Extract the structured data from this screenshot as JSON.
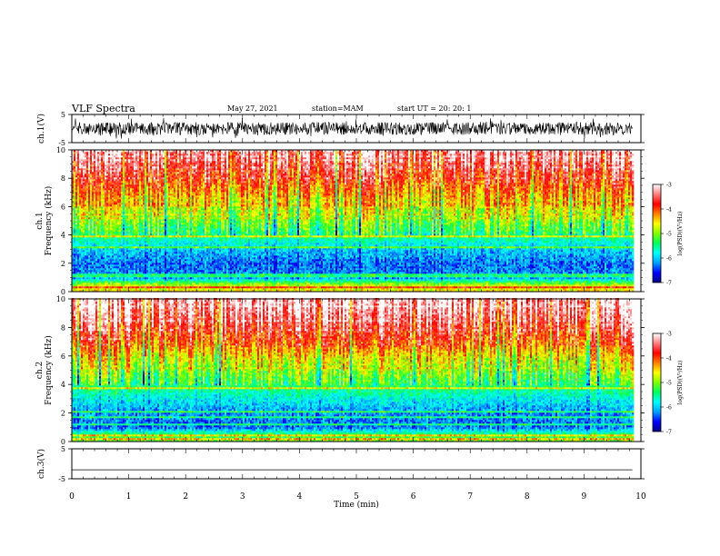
{
  "header": {
    "title": "VLF Spectra",
    "date": "May 27, 2021",
    "station": "station=MAM",
    "start": "start  UT  =   20: 20: 1"
  },
  "chart_data": [
    {
      "type": "line",
      "ylabel": "ch.1(V)",
      "ylim": [
        -5,
        5
      ],
      "yticks": [
        "5",
        "-5"
      ],
      "xlim": [
        0,
        10
      ],
      "grid": false,
      "series": [
        {
          "description_of_values": "dense noise waveform, amplitude roughly -3 to 3 V",
          "x_range": [
            0,
            9.85
          ],
          "y_envelope": [
            -3,
            3
          ]
        }
      ]
    },
    {
      "type": "heatmap",
      "ylabel": "ch.1\nFrequency (kHz)",
      "ylim": [
        0,
        10
      ],
      "yticks": [
        "0",
        "2",
        "4",
        "6",
        "8",
        "10"
      ],
      "xlim": [
        0,
        10
      ],
      "x_range": [
        0,
        9.85
      ],
      "colorbar": {
        "label": "log(PSD)(V²/Hz)",
        "range": [
          -7,
          -3
        ],
        "ticks": [
          "-3",
          "-4",
          "-5",
          "-6",
          "-7"
        ]
      },
      "profile_freq_khz": [
        0,
        0.5,
        1,
        2,
        3,
        4,
        5,
        6,
        7,
        8,
        9,
        10
      ],
      "profile_log_psd": [
        -4.5,
        -4.8,
        -6.2,
        -6.3,
        -6.0,
        -5.4,
        -5.0,
        -4.6,
        -4.2,
        -3.8,
        -3.5,
        -3.3
      ]
    },
    {
      "type": "heatmap",
      "ylabel": "ch.2\nFrequency (kHz)",
      "ylim": [
        0,
        10
      ],
      "yticks": [
        "0",
        "2",
        "4",
        "6",
        "8",
        "10"
      ],
      "xlim": [
        0,
        10
      ],
      "x_range": [
        0,
        9.85
      ],
      "colorbar": {
        "label": "log(PSD)(V²/Hz)",
        "range": [
          -7,
          -3
        ],
        "ticks": [
          "-3",
          "-4",
          "-5",
          "-6",
          "-7"
        ]
      },
      "profile_freq_khz": [
        0,
        0.5,
        1,
        2,
        3,
        4,
        5,
        6,
        7,
        8,
        9,
        10
      ],
      "profile_log_psd": [
        -5.0,
        -5.3,
        -6.3,
        -6.2,
        -5.8,
        -5.3,
        -4.9,
        -4.5,
        -4.0,
        -3.6,
        -3.3,
        -3.1
      ]
    },
    {
      "type": "line",
      "ylabel": "ch.3(V)",
      "ylim": [
        -5,
        5
      ],
      "yticks": [
        "5",
        "-5"
      ],
      "xlim": [
        0,
        10
      ],
      "xlabel": "Time  (min)",
      "xticks": [
        "0",
        "1",
        "2",
        "3",
        "4",
        "5",
        "6",
        "7",
        "8",
        "9",
        "10"
      ],
      "grid": false,
      "series": [
        {
          "x": [
            0,
            9.85
          ],
          "y": [
            -2,
            -2
          ]
        }
      ]
    }
  ],
  "colors": {
    "scale": [
      "#000080",
      "#0000ff",
      "#00a0ff",
      "#00ffff",
      "#00ff60",
      "#80ff00",
      "#ffff00",
      "#ff8000",
      "#ff0000",
      "#ff8080",
      "#ffffff"
    ]
  }
}
